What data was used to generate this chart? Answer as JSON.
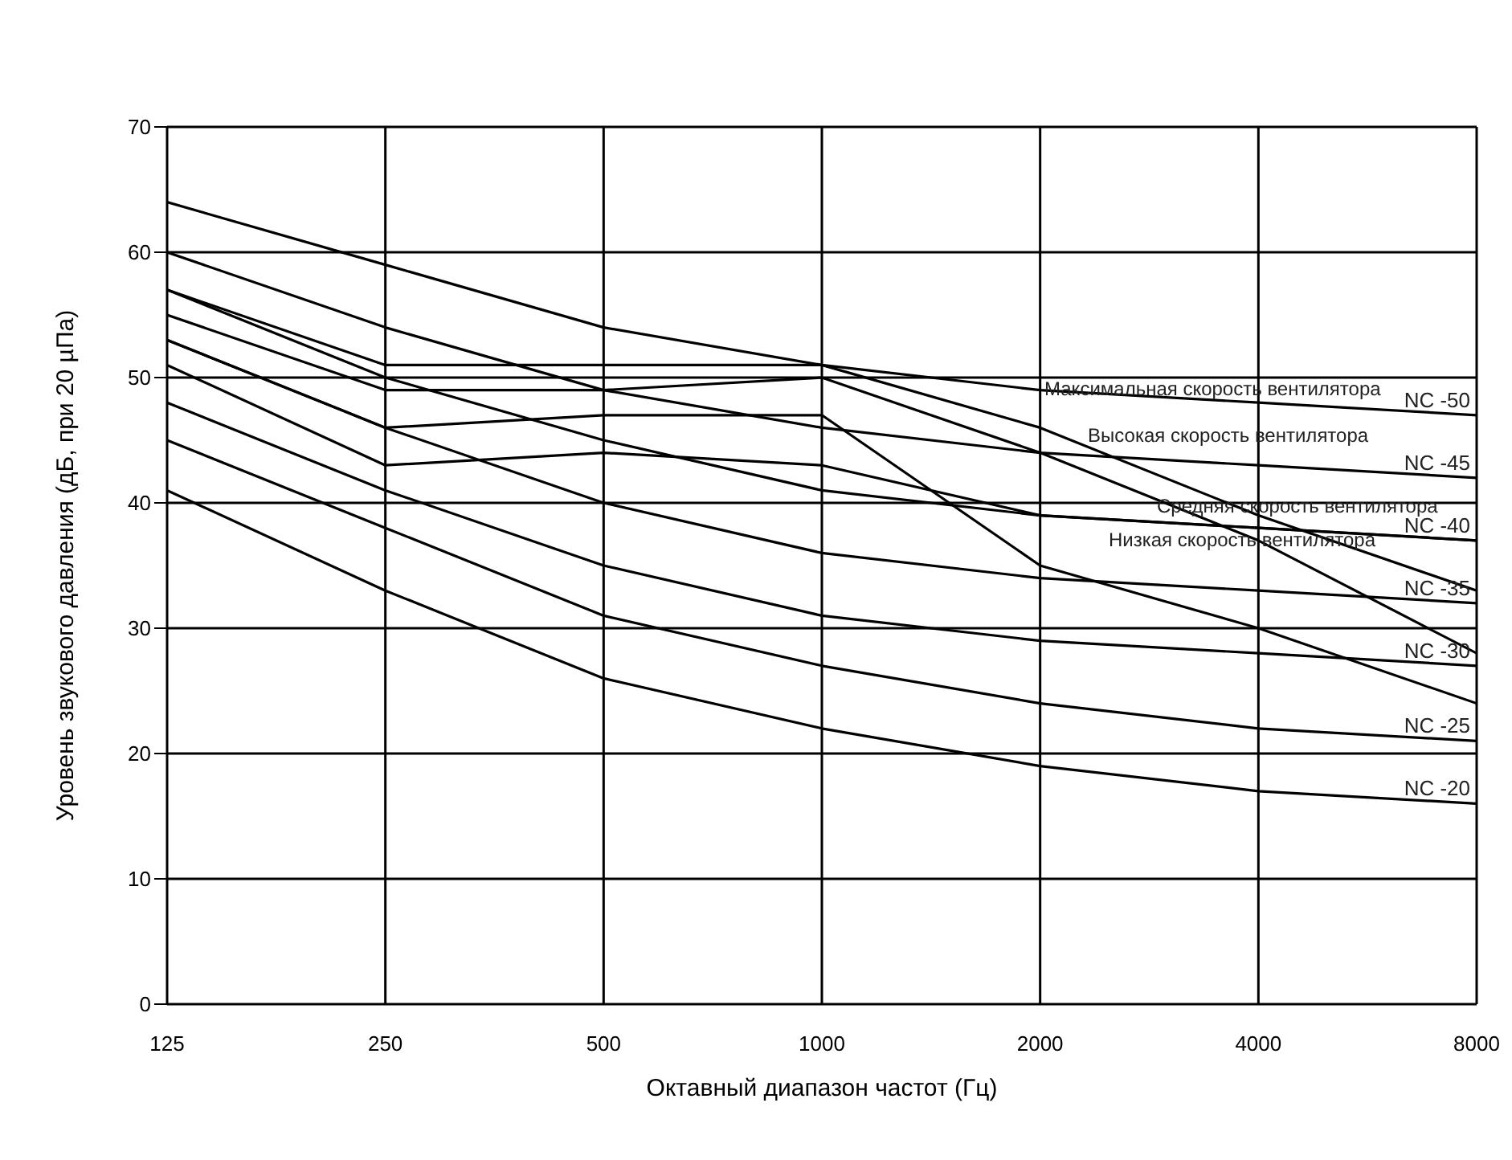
{
  "chart_data": {
    "type": "line",
    "xlabel": "Октавный диапазон частот (Гц)",
    "ylabel": "Уровень звукового давления (дБ, при 20 µПа)",
    "categories": [
      "125",
      "250",
      "500",
      "1000",
      "2000",
      "4000",
      "8000"
    ],
    "ylim": [
      0,
      70
    ],
    "yticks": [
      0,
      10,
      20,
      30,
      40,
      50,
      60,
      70
    ],
    "grid": true,
    "legend": false,
    "marker": "none",
    "line_style": "solid",
    "series": [
      {
        "name": "NC -50",
        "color": "#000000",
        "values": [
          64,
          59,
          54,
          51,
          49,
          48,
          47
        ]
      },
      {
        "name": "NC -45",
        "color": "#000000",
        "values": [
          60,
          54,
          49,
          46,
          44,
          43,
          42
        ]
      },
      {
        "name": "NC -40",
        "color": "#000000",
        "values": [
          57,
          50,
          45,
          41,
          39,
          38,
          37
        ]
      },
      {
        "name": "NC -35",
        "color": "#000000",
        "values": [
          53,
          46,
          40,
          36,
          34,
          33,
          32
        ]
      },
      {
        "name": "NC -30",
        "color": "#000000",
        "values": [
          48,
          41,
          35,
          31,
          29,
          28,
          27
        ]
      },
      {
        "name": "NC -25",
        "color": "#000000",
        "values": [
          45,
          38,
          31,
          27,
          24,
          22,
          21
        ]
      },
      {
        "name": "NC -20",
        "color": "#000000",
        "values": [
          41,
          33,
          26,
          22,
          19,
          17,
          16
        ]
      },
      {
        "color": "#000000",
        "values": [
          57,
          51,
          51,
          51,
          46,
          39,
          33
        ]
      },
      {
        "color": "#000000",
        "values": [
          55,
          49,
          49,
          50,
          44,
          37,
          28
        ]
      },
      {
        "color": "#000000",
        "values": [
          53,
          46,
          47,
          47,
          35,
          30,
          24
        ]
      },
      {
        "color": "#000000",
        "values": [
          51,
          43,
          44,
          43,
          39,
          38,
          37
        ]
      }
    ],
    "annotations": [
      "Максимальная скорость вентилятора",
      "Высокая скорость вентилятора",
      "Средняя скорость вентилятора",
      "Низкая скорость вентилятора"
    ]
  }
}
